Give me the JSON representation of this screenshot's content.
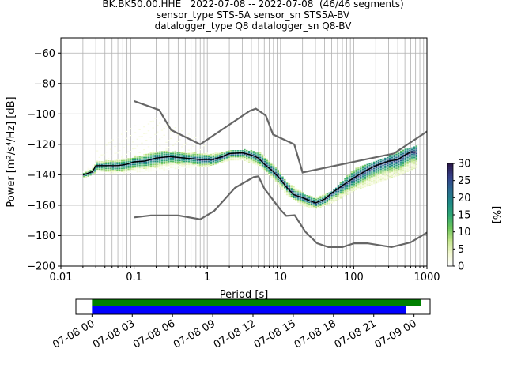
{
  "title_lines": [
    "BK.BK50.00.HHE   2022-07-08 -- 2022-07-08  (46/46 segments)",
    "sensor_type STS-5A sensor_sn STS5A-BV",
    "datalogger_type Q8 datalogger_sn Q8-BV"
  ],
  "chart_data": [
    {
      "type": "heatmap",
      "xlabel": "Period [s]",
      "ylabel": "Power [m²/s⁴/Hz] [dB]",
      "x_scale": "log",
      "xlim": [
        0.01,
        1000
      ],
      "ylim": [
        -200,
        -50
      ],
      "x_ticks": [
        {
          "value": 0.01,
          "label": "0.01"
        },
        {
          "value": 0.1,
          "label": "0.1"
        },
        {
          "value": 1,
          "label": "1"
        },
        {
          "value": 10,
          "label": "10"
        },
        {
          "value": 100,
          "label": "100"
        },
        {
          "value": 1000,
          "label": "1000"
        }
      ],
      "y_ticks": [
        {
          "value": -60,
          "label": "−60"
        },
        {
          "value": -80,
          "label": "−80"
        },
        {
          "value": -100,
          "label": "−100"
        },
        {
          "value": -120,
          "label": "−120"
        },
        {
          "value": -140,
          "label": "−140"
        },
        {
          "value": -160,
          "label": "−160"
        },
        {
          "value": -180,
          "label": "−180"
        },
        {
          "value": -200,
          "label": "−200"
        }
      ],
      "grid": true,
      "colorbar": {
        "label": "[%]",
        "range": [
          0,
          30
        ],
        "ticks": [
          {
            "value": 0,
            "label": "0"
          },
          {
            "value": 5,
            "label": "5"
          },
          {
            "value": 10,
            "label": "10"
          },
          {
            "value": 15,
            "label": "15"
          },
          {
            "value": 20,
            "label": "20"
          },
          {
            "value": 25,
            "label": "25"
          },
          {
            "value": 30,
            "label": "30"
          }
        ],
        "colors": [
          "#ffffff",
          "#f2f8cf",
          "#c2e58a",
          "#6cc45a",
          "#2ea774",
          "#1f8a87",
          "#2b6a8f",
          "#35418a",
          "#2c1a4e"
        ]
      },
      "noise_models": {
        "color": "#666666",
        "high": [
          [
            0.1,
            -91.5
          ],
          [
            0.22,
            -97.4
          ],
          [
            0.32,
            -110.5
          ],
          [
            0.8,
            -120
          ],
          [
            3.8,
            -98
          ],
          [
            4.6,
            -96.5
          ],
          [
            6.3,
            -101
          ],
          [
            7.9,
            -113.5
          ],
          [
            15.4,
            -120
          ],
          [
            20,
            -138.5
          ],
          [
            354.8,
            -126
          ],
          [
            1000,
            -111.5
          ]
        ],
        "low": [
          [
            0.1,
            -168
          ],
          [
            0.17,
            -166.7
          ],
          [
            0.4,
            -166.7
          ],
          [
            0.8,
            -169.2
          ],
          [
            1.24,
            -163.7
          ],
          [
            2.4,
            -148.5
          ],
          [
            4.3,
            -141.5
          ],
          [
            5,
            -141
          ],
          [
            6,
            -149
          ],
          [
            10,
            -163
          ],
          [
            12,
            -167
          ],
          [
            15.6,
            -166.5
          ],
          [
            21.9,
            -177.5
          ],
          [
            31.6,
            -185
          ],
          [
            45,
            -187.5
          ],
          [
            70,
            -187.5
          ],
          [
            101,
            -185
          ],
          [
            154,
            -185
          ],
          [
            328,
            -187.5
          ],
          [
            600,
            -184.4
          ],
          [
            1000,
            -178
          ]
        ]
      },
      "mean_curve": {
        "color": "#000000",
        "points": [
          [
            0.02,
            -140
          ],
          [
            0.027,
            -138
          ],
          [
            0.03,
            -134
          ],
          [
            0.04,
            -134
          ],
          [
            0.06,
            -134
          ],
          [
            0.08,
            -133
          ],
          [
            0.1,
            -131.5
          ],
          [
            0.14,
            -131
          ],
          [
            0.2,
            -129
          ],
          [
            0.3,
            -128
          ],
          [
            0.5,
            -129
          ],
          [
            0.8,
            -130
          ],
          [
            1.2,
            -130
          ],
          [
            1.6,
            -128
          ],
          [
            2,
            -126
          ],
          [
            3,
            -125.5
          ],
          [
            4,
            -127
          ],
          [
            5,
            -129
          ],
          [
            6,
            -133
          ],
          [
            8,
            -138
          ],
          [
            10,
            -143
          ],
          [
            12,
            -148
          ],
          [
            15,
            -153
          ],
          [
            20,
            -155
          ],
          [
            25,
            -157
          ],
          [
            30,
            -158.5
          ],
          [
            40,
            -156
          ],
          [
            50,
            -152
          ],
          [
            70,
            -147
          ],
          [
            100,
            -142
          ],
          [
            150,
            -137
          ],
          [
            200,
            -134
          ],
          [
            300,
            -131
          ],
          [
            400,
            -130
          ],
          [
            500,
            -127
          ],
          [
            600,
            -125
          ],
          [
            700,
            -125
          ]
        ]
      },
      "spread_band": {
        "lower": [
          [
            0.02,
            -142
          ],
          [
            0.03,
            -138
          ],
          [
            0.05,
            -139
          ],
          [
            0.1,
            -138
          ],
          [
            0.2,
            -137
          ],
          [
            0.5,
            -135
          ],
          [
            1,
            -134
          ],
          [
            2,
            -130
          ],
          [
            3,
            -130
          ],
          [
            5,
            -134
          ],
          [
            8,
            -143
          ],
          [
            12,
            -153
          ],
          [
            20,
            -160
          ],
          [
            30,
            -162
          ],
          [
            50,
            -158
          ],
          [
            100,
            -150
          ],
          [
            200,
            -145
          ],
          [
            400,
            -140
          ],
          [
            700,
            -135
          ]
        ],
        "upper": [
          [
            0.02,
            -138
          ],
          [
            0.03,
            -131
          ],
          [
            0.05,
            -130
          ],
          [
            0.1,
            -128
          ],
          [
            0.2,
            -124
          ],
          [
            0.5,
            -125
          ],
          [
            1,
            -126
          ],
          [
            2,
            -124
          ],
          [
            3,
            -123
          ],
          [
            5,
            -125
          ],
          [
            8,
            -133
          ],
          [
            12,
            -145
          ],
          [
            20,
            -152
          ],
          [
            30,
            -155
          ],
          [
            50,
            -150
          ],
          [
            100,
            -136
          ],
          [
            200,
            -131
          ],
          [
            400,
            -124
          ],
          [
            700,
            -121
          ]
        ]
      },
      "faint_cloud": {
        "lower": [
          [
            0.03,
            -130
          ],
          [
            0.1,
            -127
          ],
          [
            0.2,
            -125
          ],
          [
            0.4,
            -127
          ],
          [
            1,
            -130
          ]
        ],
        "upper": [
          [
            0.03,
            -122
          ],
          [
            0.1,
            -107
          ],
          [
            0.2,
            -102
          ],
          [
            0.4,
            -108
          ],
          [
            1,
            -120
          ]
        ]
      }
    },
    {
      "type": "bar",
      "description_role": "data coverage timeline",
      "x_ticks": [
        "07-08 00",
        "07-08 03",
        "07-08 06",
        "07-08 09",
        "07-08 12",
        "07-08 15",
        "07-08 18",
        "07-08 21",
        "07-09 00"
      ],
      "x_range_hours": [
        -1.2,
        25.2
      ],
      "series": [
        {
          "color": "#008000",
          "start_hours": 0,
          "end_hours": 24.5
        },
        {
          "color": "#0000ff",
          "start_hours": 0,
          "end_hours": 23.4
        }
      ]
    }
  ]
}
